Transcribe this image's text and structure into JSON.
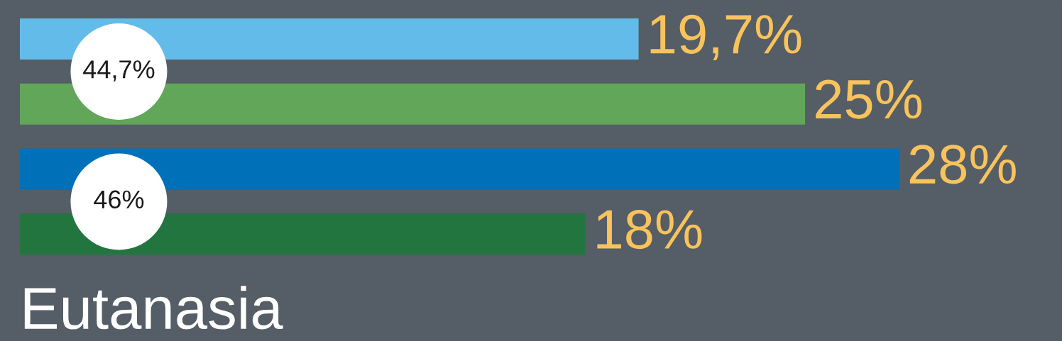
{
  "chart_data": {
    "type": "bar",
    "orientation": "horizontal",
    "title": "Eutanasia",
    "categories": [
      null,
      null,
      null,
      null
    ],
    "values": [
      19.7,
      25,
      28,
      18
    ],
    "colors": [
      "#63bbea",
      "#62a659",
      "#0070b8",
      "#237540"
    ],
    "value_labels": [
      "19,7%",
      "25%",
      "28%",
      "18%"
    ],
    "annotations": [
      "44,7%",
      "46%"
    ]
  }
}
